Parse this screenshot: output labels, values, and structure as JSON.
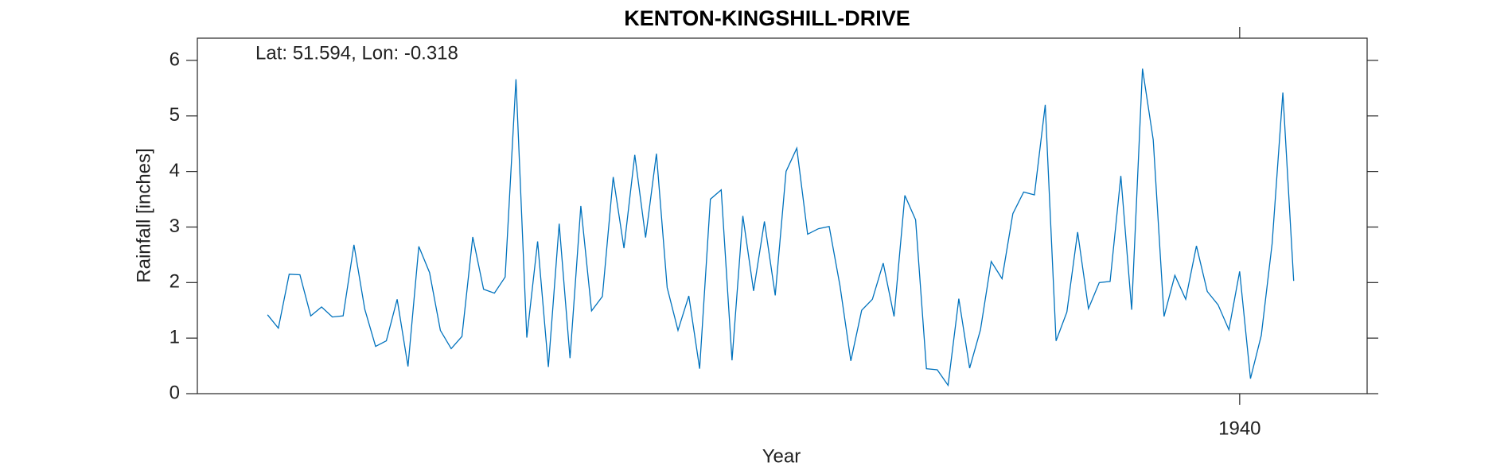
{
  "chart_data": {
    "type": "line",
    "title": "KENTON-KINGSHILL-DRIVE",
    "annotation": "Lat: 51.594, Lon: -0.318",
    "xlabel": "Year",
    "ylabel": "Rainfall [inches]",
    "x": [
      1850,
      1851,
      1852,
      1853,
      1854,
      1855,
      1856,
      1857,
      1858,
      1859,
      1860,
      1861,
      1862,
      1863,
      1864,
      1865,
      1866,
      1867,
      1868,
      1869,
      1870,
      1871,
      1872,
      1873,
      1874,
      1875,
      1876,
      1877,
      1878,
      1879,
      1880,
      1881,
      1882,
      1883,
      1884,
      1885,
      1886,
      1887,
      1888,
      1889,
      1890,
      1891,
      1892,
      1893,
      1894,
      1895,
      1896,
      1897,
      1898,
      1899,
      1900,
      1901,
      1902,
      1903,
      1904,
      1905,
      1906,
      1907,
      1908,
      1909,
      1910,
      1911,
      1912,
      1913,
      1914,
      1915,
      1916,
      1917,
      1918,
      1919,
      1920,
      1921,
      1922,
      1923,
      1924,
      1925,
      1926,
      1927,
      1928,
      1929,
      1930,
      1931,
      1932,
      1933,
      1934,
      1935,
      1936,
      1937,
      1938,
      1939,
      1940,
      1941,
      1942,
      1943,
      1944,
      1945
    ],
    "series": [
      {
        "name": "Rainfall",
        "color": "#0072bd",
        "values": [
          1.42,
          1.18,
          2.15,
          2.14,
          1.4,
          1.56,
          1.38,
          1.4,
          2.68,
          1.52,
          0.85,
          0.95,
          1.7,
          0.49,
          2.65,
          2.18,
          1.14,
          0.81,
          1.03,
          2.82,
          1.88,
          1.81,
          2.1,
          5.66,
          1.01,
          2.74,
          0.48,
          3.06,
          0.64,
          3.38,
          1.49,
          1.75,
          3.9,
          2.62,
          4.3,
          2.81,
          4.32,
          1.91,
          1.14,
          1.76,
          0.45,
          3.5,
          3.67,
          0.6,
          3.2,
          1.85,
          3.1,
          1.77,
          4.0,
          4.42,
          2.87,
          2.97,
          3.01,
          1.94,
          0.59,
          1.5,
          1.7,
          2.35,
          1.39,
          3.57,
          3.13,
          0.45,
          0.43,
          0.15,
          1.71,
          0.46,
          1.15,
          2.38,
          2.07,
          3.24,
          3.63,
          3.58,
          5.2,
          0.95,
          1.47,
          2.91,
          1.53,
          2.0,
          2.02,
          3.92,
          1.51,
          5.85,
          4.57,
          1.39,
          2.13,
          1.7,
          2.66,
          1.84,
          1.6,
          1.15,
          2.2,
          0.27,
          1.05,
          2.7,
          5.42,
          2.03
        ]
      }
    ],
    "xlim": [
      1843.5,
      1951.8
    ],
    "xticks": [
      1940
    ],
    "ylim": [
      0,
      6.4
    ],
    "yticks": [
      0,
      1,
      2,
      3,
      4,
      5,
      6
    ]
  }
}
